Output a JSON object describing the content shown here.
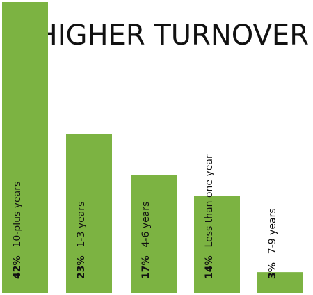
{
  "chart_data": {
    "type": "bar",
    "title": "HIGHER TURNOVER",
    "subtitle": "",
    "xlabel": "",
    "ylabel": "",
    "ylim": [
      0,
      45
    ],
    "grid": false,
    "legend": "none",
    "categories": [
      "10-plus years",
      "1-3 years",
      "4-6 years",
      "Less than one year",
      "7-9 years"
    ],
    "values": [
      42,
      23,
      17,
      14,
      3
    ],
    "value_labels": [
      "42%",
      "23%",
      "17%",
      "14%",
      "3%"
    ],
    "bar_color": "#7cb342"
  }
}
